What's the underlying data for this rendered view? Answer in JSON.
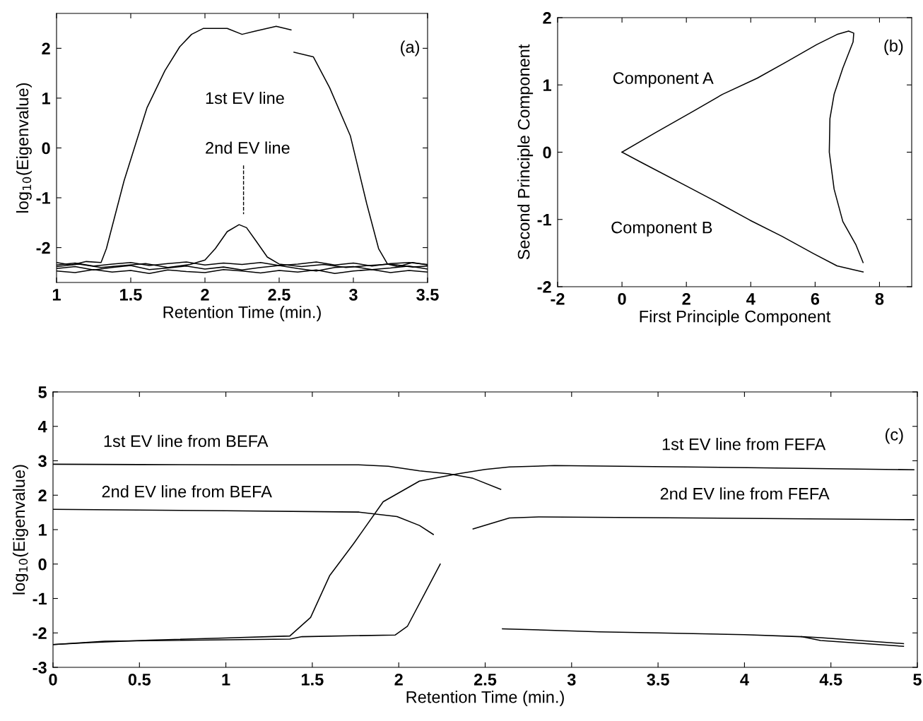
{
  "chart_data": [
    {
      "type": "line",
      "xlabel": "Retention Time (min.)",
      "ylabel": "log$_{10}$(Eigenvalue)",
      "xlim": [
        1,
        3.5
      ],
      "ylim": [
        -2.7,
        2.7
      ],
      "xticks": [
        1,
        1.5,
        2,
        2.5,
        3,
        3.5
      ],
      "yticks": [
        -2,
        -1,
        0,
        1,
        2
      ],
      "series": [
        {
          "color": "#000000",
          "x": [
            1.0,
            1.1,
            1.2,
            1.3,
            1.336,
            1.455,
            1.61,
            1.73,
            1.83,
            1.91,
            1.99,
            2.15,
            2.25,
            2.33,
            2.48,
            2.58
          ],
          "values": [
            -2.3,
            -2.35,
            -2.28,
            -2.3,
            -2.02,
            -0.66,
            0.81,
            1.55,
            2.03,
            2.28,
            2.4,
            2.4,
            2.28,
            2.34,
            2.44,
            2.37
          ]
        },
        {
          "color": "#000000",
          "x": [
            2.6,
            2.73,
            2.84,
            2.98,
            3.09,
            3.17,
            3.23,
            3.3,
            3.4,
            3.5
          ],
          "values": [
            1.92,
            1.83,
            1.21,
            0.24,
            -1.12,
            -2.02,
            -2.33,
            -2.38,
            -2.3,
            -2.35
          ]
        },
        {
          "color": "#000000",
          "x": [
            1.0,
            1.15,
            1.3,
            1.45,
            1.6,
            1.75,
            1.9,
            2.0,
            2.07,
            2.15,
            2.23,
            2.28,
            2.34,
            2.42,
            2.5,
            2.65,
            2.8,
            2.95,
            3.1,
            3.25,
            3.4,
            3.5
          ],
          "values": [
            -2.38,
            -2.33,
            -2.4,
            -2.36,
            -2.32,
            -2.4,
            -2.34,
            -2.25,
            -2.02,
            -1.68,
            -1.54,
            -1.6,
            -1.85,
            -2.19,
            -2.33,
            -2.38,
            -2.34,
            -2.4,
            -2.36,
            -2.33,
            -2.39,
            -2.37
          ]
        },
        {
          "color": "#000000",
          "x": [
            1.0,
            1.125,
            1.25,
            1.375,
            1.5,
            1.625,
            1.75,
            1.875,
            2.0,
            2.125,
            2.25,
            2.375,
            2.5,
            2.625,
            2.75,
            2.875,
            3.0,
            3.125,
            3.25,
            3.375,
            3.5
          ],
          "values": [
            -2.42,
            -2.38,
            -2.45,
            -2.4,
            -2.36,
            -2.44,
            -2.41,
            -2.37,
            -2.43,
            -2.39,
            -2.45,
            -2.4,
            -2.36,
            -2.42,
            -2.47,
            -2.4,
            -2.38,
            -2.44,
            -2.41,
            -2.37,
            -2.43
          ]
        },
        {
          "color": "#000000",
          "x": [
            1.0,
            1.125,
            1.25,
            1.375,
            1.5,
            1.625,
            1.75,
            1.875,
            2.0,
            2.125,
            2.25,
            2.375,
            2.5,
            2.625,
            2.75,
            2.875,
            3.0,
            3.125,
            3.25,
            3.375,
            3.5
          ],
          "values": [
            -2.47,
            -2.5,
            -2.44,
            -2.49,
            -2.46,
            -2.52,
            -2.45,
            -2.48,
            -2.5,
            -2.44,
            -2.47,
            -2.51,
            -2.46,
            -2.49,
            -2.45,
            -2.52,
            -2.47,
            -2.44,
            -2.5,
            -2.46,
            -2.49
          ]
        },
        {
          "color": "#000000",
          "x": [
            1.0,
            1.125,
            1.25,
            1.375,
            1.5,
            1.625,
            1.75,
            1.875,
            2.0,
            2.125,
            2.25,
            2.375,
            2.5,
            2.625,
            2.75,
            2.875,
            3.0,
            3.125,
            3.25,
            3.375,
            3.5
          ],
          "values": [
            -2.35,
            -2.31,
            -2.37,
            -2.33,
            -2.3,
            -2.36,
            -2.32,
            -2.29,
            -2.35,
            -2.31,
            -2.34,
            -2.3,
            -2.36,
            -2.33,
            -2.29,
            -2.35,
            -2.31,
            -2.37,
            -2.32,
            -2.3,
            -2.34
          ]
        }
      ],
      "annotations": [
        "1st EV line",
        "2nd EV line",
        "(a)"
      ]
    },
    {
      "type": "line",
      "xlabel": "First Principle Component",
      "ylabel": "Second Principle Component",
      "xlim": [
        -2,
        9
      ],
      "ylim": [
        -2,
        2
      ],
      "xticks": [
        -2,
        0,
        2,
        4,
        6,
        8
      ],
      "yticks": [
        -2,
        -1,
        0,
        1,
        2
      ],
      "series": [
        {
          "color": "#000000",
          "x": [
            0,
            1.04,
            2.22,
            3.12,
            4.2,
            5.1,
            6.05,
            6.68,
            7.04,
            7.2,
            7.18,
            6.86,
            6.59,
            6.46,
            6.44,
            6.59,
            6.86,
            7.27,
            7.49
          ],
          "values": [
            0,
            0.29,
            0.61,
            0.86,
            1.1,
            1.34,
            1.6,
            1.75,
            1.8,
            1.77,
            1.64,
            1.25,
            0.86,
            0.5,
            0,
            -0.55,
            -1.03,
            -1.38,
            -1.64
          ]
        },
        {
          "color": "#000000",
          "x": [
            0,
            0.59,
            1.99,
            2.98,
            3.97,
            4.97,
            5.96,
            6.68,
            7.22,
            7.49
          ],
          "values": [
            0,
            -0.15,
            -0.5,
            -0.75,
            -1.01,
            -1.25,
            -1.51,
            -1.69,
            -1.75,
            -1.78
          ]
        }
      ],
      "annotations": [
        "Component A",
        "Component B",
        "(b)"
      ]
    },
    {
      "type": "line",
      "xlabel": "Retention Time (min.)",
      "ylabel": "log$_{10}$(Eigenvalue)",
      "xlim": [
        0,
        5
      ],
      "ylim": [
        -3,
        5
      ],
      "xticks": [
        0,
        0.5,
        1,
        1.5,
        2,
        2.5,
        3,
        3.5,
        4,
        4.5,
        5
      ],
      "yticks": [
        -3,
        -2,
        -1,
        0,
        1,
        2,
        3,
        4,
        5
      ],
      "series": [
        {
          "color": "#000000",
          "x": [
            0,
            0.5,
            1.08,
            1.5,
            1.77,
            1.94,
            2.12,
            2.29,
            2.43,
            2.59
          ],
          "values": [
            2.9,
            2.89,
            2.88,
            2.88,
            2.88,
            2.84,
            2.71,
            2.62,
            2.49,
            2.17
          ]
        },
        {
          "color": "#000000",
          "x": [
            2.6,
            3.16,
            3.5,
            4,
            4.33,
            4.44,
            4.92
          ],
          "values": [
            -1.88,
            -1.97,
            -2.0,
            -2.05,
            -2.11,
            -2.22,
            -2.39
          ]
        },
        {
          "color": "#000000",
          "x": [
            4.33,
            4.44,
            4.92
          ],
          "values": [
            -2.11,
            -2.14,
            -2.31
          ]
        },
        {
          "color": "#000000",
          "x": [
            0,
            1,
            1.77,
            1.99,
            2.12,
            2.2
          ],
          "values": [
            1.59,
            1.55,
            1.51,
            1.38,
            1.12,
            0.86
          ]
        },
        {
          "color": "#000000",
          "x": [
            0,
            0.21,
            0.56,
            0.99,
            1.37,
            1.49,
            1.6,
            1.74,
            1.91,
            2.12,
            2.34,
            2.5,
            2.64,
            2.9,
            4.02,
            4.98
          ],
          "values": [
            -2.34,
            -2.28,
            -2.21,
            -2.15,
            -2.09,
            -1.55,
            -0.34,
            0.6,
            1.81,
            2.41,
            2.62,
            2.75,
            2.82,
            2.86,
            2.8,
            2.74
          ]
        },
        {
          "color": "#000000",
          "x": [
            0,
            0.3,
            1.37,
            1.44,
            1.98,
            2.05,
            2.15,
            2.24
          ],
          "values": [
            -2.34,
            -2.24,
            -2.18,
            -2.11,
            -2.06,
            -1.81,
            -0.86,
            0.0
          ]
        },
        {
          "color": "#000000",
          "x": [
            2.43,
            2.64,
            2.81,
            4.98
          ],
          "values": [
            1.02,
            1.34,
            1.37,
            1.29
          ]
        }
      ],
      "annotations": [
        "1st EV line from BEFA",
        "2nd EV line from BEFA",
        "1st EV line from FEFA",
        "2nd EV line from FEFA",
        "(c)"
      ]
    }
  ]
}
